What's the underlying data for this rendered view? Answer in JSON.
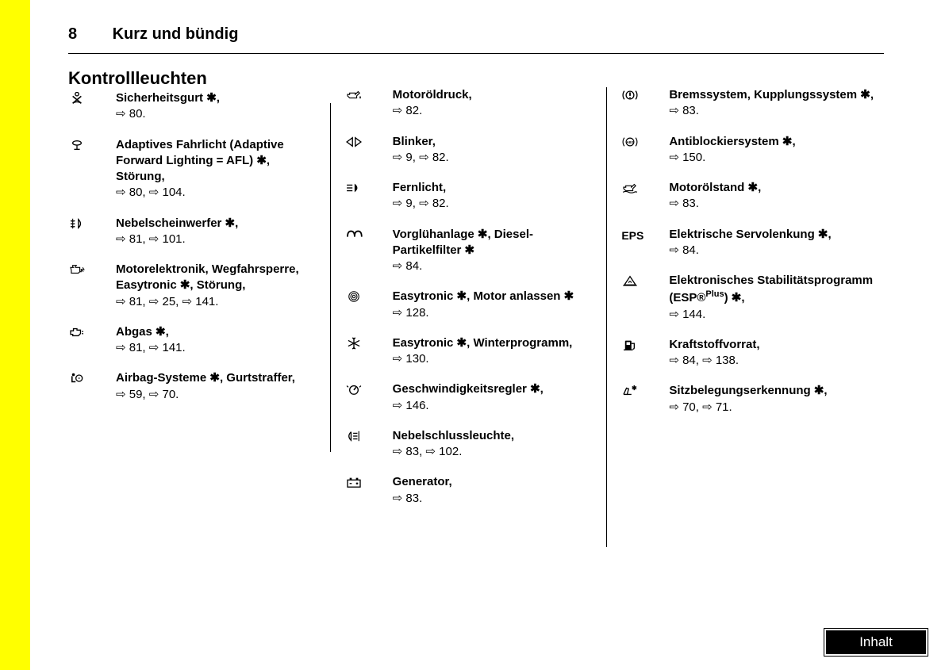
{
  "page_number": "8",
  "chapter_title": "Kurz und bündig",
  "section_heading": "Kontrollleuchten",
  "ask": "✱",
  "arrow_glyph": "⇨",
  "footer_label": "Inhalt",
  "columns": [
    [
      {
        "icon": "seatbelt",
        "text_html": "Sicherheitsgurt ✱,",
        "refs": "⇨ 80."
      },
      {
        "icon": "afl",
        "text_html": "Adaptives Fahrlicht (Adaptive Forward Lighting = AFL) ✱, Störung,",
        "refs": "⇨ 80, ⇨ 104."
      },
      {
        "icon": "foglight-front",
        "text_html": "Nebelscheinwerfer ✱,",
        "refs": "⇨ 81, ⇨ 101."
      },
      {
        "icon": "engine-elec",
        "text_html": "Motorelektronik, Wegfahrsperre, Easytronic ✱, Störung,",
        "refs": "⇨ 81, ⇨ 25, ⇨ 141."
      },
      {
        "icon": "exhaust",
        "text_html": "Abgas ✱,",
        "refs": "⇨ 81, ⇨ 141."
      },
      {
        "icon": "airbag",
        "text_html": "Airbag-Systeme ✱, Gurtstraffer,",
        "refs": "⇨ 59, ⇨ 70."
      }
    ],
    [
      {
        "icon": "oilcan",
        "text_html": "Motoröldruck,",
        "refs": "⇨ 82."
      },
      {
        "icon": "turn-signals",
        "text_html": "Blinker,",
        "refs": "⇨ 9, ⇨ 82."
      },
      {
        "icon": "high-beam",
        "text_html": "Fernlicht,",
        "refs": "⇨ 9, ⇨ 82."
      },
      {
        "icon": "glow-plug",
        "text_html": "Vorglühanlage ✱, Diesel-Partikelfilter ✱",
        "refs": "⇨ 84."
      },
      {
        "icon": "easytronic-circle",
        "text_html": "Easytronic ✱, Motor anlassen ✱",
        "refs": "⇨ 128."
      },
      {
        "icon": "snowflake",
        "text_html": "Easytronic ✱, Winterprogramm,",
        "refs": "⇨ 130."
      },
      {
        "icon": "cruise",
        "text_html": "Geschwindigkeitsregler ✱,",
        "refs": "⇨ 146."
      },
      {
        "icon": "foglight-rear",
        "text_html": "Nebelschlussleuchte,",
        "refs": "⇨ 83, ⇨ 102."
      },
      {
        "icon": "battery",
        "text_html": "Generator,",
        "refs": "⇨ 83."
      }
    ],
    [
      {
        "icon": "brake",
        "text_html": "Bremssystem, Kupplungssystem ✱,",
        "refs": "⇨ 83."
      },
      {
        "icon": "abs",
        "text_html": "Antiblockiersystem ✱,",
        "refs": "⇨ 150."
      },
      {
        "icon": "oil-level",
        "text_html": "Motorölstand ✱,",
        "refs": "⇨ 83."
      },
      {
        "icon": "eps-text",
        "text_html": "Elektrische Servolenkung ✱,",
        "refs": "⇨ 84."
      },
      {
        "icon": "esp",
        "text_html": "Elektronisches Stabilitätsprogramm (ESP®<span class='sup'>Plus</span>) ✱,",
        "refs": "⇨ 144."
      },
      {
        "icon": "fuel",
        "text_html": "Kraftstoffvorrat,",
        "refs": "⇨ 84, ⇨ 138."
      },
      {
        "icon": "seat-occupancy",
        "text_html": "Sitzbelegungserkennung ✱,",
        "refs": "⇨ 70, ⇨ 71."
      }
    ]
  ],
  "icons": {
    "seatbelt": "<svg viewBox='0 0 24 18'><circle cx='12' cy='3' r='2.5' fill='none' stroke='#000' stroke-width='1.5'/><path d='M6 6 L18 16 M18 6 L6 16' stroke='#000' stroke-width='1.8'/><path d='M6 16 Q12 12 18 16' fill='none' stroke='#000' stroke-width='1.5'/></svg>",
    "afl": "<svg viewBox='0 0 24 18'><ellipse cx='12' cy='6' rx='6' ry='3' fill='none' stroke='#000' stroke-width='1.5'/><line x1='12' y1='9' x2='12' y2='15' stroke='#000' stroke-width='1.5'/><line x1='8' y1='15' x2='16' y2='15' stroke='#000' stroke-width='1.5'/></svg>",
    "foglight-front": "<svg viewBox='0 0 24 18'><path d='M14 3 Q20 9 14 15 L14 3 Z' fill='none' stroke='#000' stroke-width='1.5'/><path d='M3 5 Q6 6 9 5 M3 9 Q6 10 9 9 M3 13 Q6 14 9 13' fill='none' stroke='#000' stroke-width='1.5'/><line x1='6' y1='2' x2='6' y2='16' stroke='#000' stroke-width='1.2'/></svg>",
    "engine-elec": "<svg viewBox='0 0 24 18'><path d='M4 10 L3 6 L8 6 M6 6 L6 3 L12 3 M10 3 L10 6 L16 6 L16 12 L18 12 L18 8 M4 10 L4 14 L14 14 L16 12' fill='none' stroke='#000' stroke-width='1.3'/><path d='M20 6 L22 9 L19 9 L21 12' fill='none' stroke='#000' stroke-width='1.2'/></svg>",
    "exhaust": "<svg viewBox='0 0 24 18'><path d='M3 7 L3 12 L6 12 L6 14 L14 14 L17 11 L17 6 L12 6 L12 4 L7 4 L7 7 Z' fill='none' stroke='#000' stroke-width='1.5'/><line x1='19' y1='8' x2='21' y2='8' stroke='#000' stroke-width='1.5'/><line x1='19' y1='11' x2='21' y2='11' stroke='#000' stroke-width='1.5'/></svg>",
    "airbag": "<svg viewBox='0 0 24 18'><circle cx='7' cy='4' r='2' fill='#000'/><circle cx='15' cy='9' r='4.5' fill='none' stroke='#000' stroke-width='1.5'/><path d='M5 6 L5 14 L10 14' fill='none' stroke='#000' stroke-width='1.8'/><circle cx='15' cy='9' r='1' fill='#000'/></svg>",
    "oilcan": "<svg viewBox='0 0 24 18'><path d='M3 8 L6 8 L6 6 L14 6 L14 8 L18 4 L20 6 L16 10 L16 13 L6 13 L3 10 Z' fill='none' stroke='#000' stroke-width='1.3'/><path d='M21 10 Q23 13 21 14 Q19 13 21 10' fill='#000'/></svg>",
    "turn-signals": "<svg viewBox='0 0 24 18'><path d='M10 5 L10 3 L2 9 L10 15 L10 13 L10 5' fill='none' stroke='#000' stroke-width='1.5'/><path d='M14 5 L14 3 L22 9 L14 15 L14 13 L14 5' fill='none' stroke='#000' stroke-width='1.5'/></svg>",
    "high-beam": "<svg viewBox='0 0 24 18'><path d='M13 3 Q21 9 13 15 Z' fill='#000'/><line x1='2' y1='5' x2='10' y2='5' stroke='#000' stroke-width='1.5'/><line x1='2' y1='9' x2='10' y2='9' stroke='#000' stroke-width='1.5'/><line x1='2' y1='13' x2='10' y2='13' stroke='#000' stroke-width='1.5'/></svg>",
    "glow-plug": "<svg viewBox='0 0 24 18'><path d='M3 12 Q3 4 8 4 Q13 4 13 12 M13 12 Q13 4 18 4 Q23 4 23 12' fill='none' stroke='#000' stroke-width='2'/></svg>",
    "easytronic-circle": "<svg viewBox='0 0 24 18'><circle cx='12' cy='9' r='7' fill='none' stroke='#000' stroke-width='1.2'/><circle cx='12' cy='9' r='4.5' fill='none' stroke='#000' stroke-width='1.2'/><circle cx='12' cy='9' r='2' fill='none' stroke='#000' stroke-width='1.2'/></svg>",
    "snowflake": "<svg viewBox='0 0 24 18'><g stroke='#000' stroke-width='1.5'><line x1='12' y1='1' x2='12' y2='17'/><line x1='4' y1='5' x2='20' y2='13'/><line x1='4' y1='13' x2='20' y2='5'/><path d='M12 3 L10 1 M12 3 L14 1 M12 15 L10 17 M12 15 L14 17'/></g></svg>",
    "cruise": "<svg viewBox='0 0 24 18'><circle cx='12' cy='10' r='6' fill='none' stroke='#000' stroke-width='1.5'/><line x1='12' y1='10' x2='15' y2='6' stroke='#000' stroke-width='1.8'/><path d='M4 6 L2 4 M20 6 L22 4' stroke='#000' stroke-width='1.5'/></svg>",
    "foglight-rear": "<svg viewBox='0 0 24 18'><path d='M8 3 Q2 9 8 15 L8 3' fill='none' stroke='#000' stroke-width='1.5'/><line x1='11' y1='5' x2='17' y2='5' stroke='#000' stroke-width='1.5'/><line x1='11' y1='9' x2='17' y2='9' stroke='#000' stroke-width='1.5'/><line x1='11' y1='13' x2='17' y2='13' stroke='#000' stroke-width='1.5'/><line x1='19' y1='2' x2='19' y2='16' stroke='#000' stroke-width='1.3'/></svg>",
    "battery": "<svg viewBox='0 0 24 18'><rect x='3' y='6' width='18' height='10' fill='none' stroke='#000' stroke-width='1.5'/><rect x='6' y='3' width='3' height='3' fill='#000'/><rect x='15' y='3' width='3' height='3' fill='#000'/><line x1='6' y1='11' x2='9' y2='11' stroke='#000' stroke-width='1.5'/><line x1='15' y1='11' x2='18' y2='11' stroke='#000' stroke-width='1.5'/><line x1='16.5' y1='9.5' x2='16.5' y2='12.5' stroke='#000' stroke-width='1.5'/></svg>",
    "brake": "<svg viewBox='0 0 24 18'><circle cx='12' cy='9' r='5.5' fill='none' stroke='#000' stroke-width='1.5'/><path d='M4 3 A10 10 0 0 0 4 15' fill='none' stroke='#000' stroke-width='1.5'/><path d='M20 3 A10 10 0 0 1 20 15' fill='none' stroke='#000' stroke-width='1.5'/><line x1='12' y1='5' x2='12' y2='10' stroke='#000' stroke-width='2'/><circle cx='12' cy='12.5' r='1' fill='#000'/></svg>",
    "abs": "<svg viewBox='0 0 24 18'><circle cx='12' cy='9' r='5.5' fill='none' stroke='#000' stroke-width='1.3'/><path d='M4 3 A10 10 0 0 0 4 15' fill='none' stroke='#000' stroke-width='1.3'/><path d='M20 3 A10 10 0 0 1 20 15' fill='none' stroke='#000' stroke-width='1.3'/><text x='12' y='11.5' font-size='5' font-weight='bold' text-anchor='middle' font-family='Arial'>ABS</text></svg>",
    "oil-level": "<svg viewBox='0 0 24 18'><path d='M3 8 L6 8 L6 6 L14 6 L14 8 L18 4 L20 6 L16 10 L16 13 L6 13 L3 10 Z' fill='none' stroke='#000' stroke-width='1.3'/><path d='M2 15 Q6 13 10 15 Q14 17 18 15 Q20 14 22 15' fill='none' stroke='#000' stroke-width='1.3'/></svg>",
    "eps-text": "<span style='font-weight:bold;font-size:14px'>EPS</span>",
    "esp": "<svg viewBox='0 0 24 18'><path d='M4 15 L12 3 L20 15 Z' fill='none' stroke='#000' stroke-width='1.5'/><path d='M10 12 Q12 8 14 12' fill='none' stroke='#000' stroke-width='1.3'/><line x1='2' y1='16' x2='22' y2='16' stroke='#000' stroke-width='1'/></svg>",
    "fuel": "<svg viewBox='0 0 24 18'><rect x='5' y='3' width='9' height='13' rx='1' fill='#000'/><rect x='7' y='5' width='5' height='4' fill='#fff'/><path d='M14 7 L18 7 L18 13 Q18 15 16 15' fill='none' stroke='#000' stroke-width='1.5'/><line x1='3' y1='16' x2='16' y2='16' stroke='#000' stroke-width='1.5'/></svg>",
    "seat-occupancy": "<svg viewBox='0 0 24 18'><path d='M3 14 L8 14 L10 6 L7 5 L3 14' fill='none' stroke='#000' stroke-width='1.5'/><line x1='8' y1='14' x2='14' y2='14' stroke='#000' stroke-width='1.5'/><text x='18' y='8' font-size='9' text-anchor='middle'>✱</text></svg>"
  }
}
